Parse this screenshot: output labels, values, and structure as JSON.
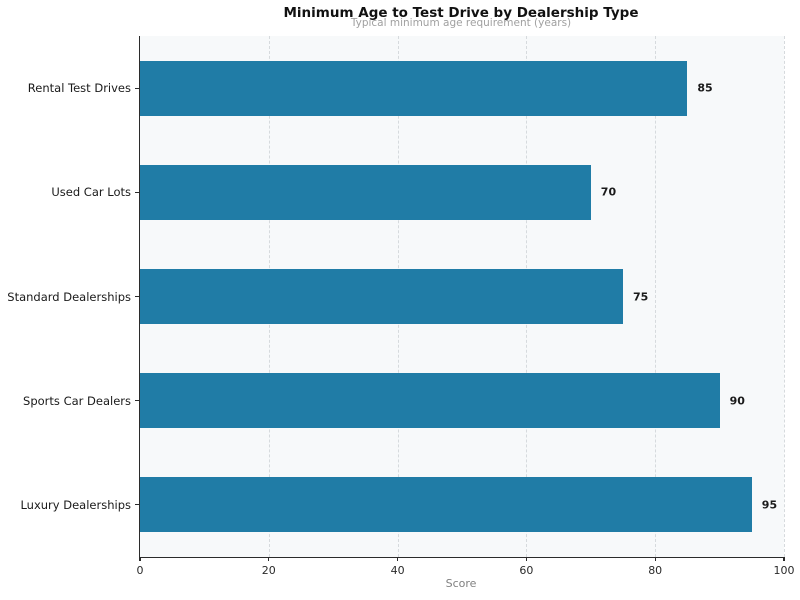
{
  "chart_data": {
    "type": "bar",
    "orientation": "horizontal",
    "title": "Minimum Age to Test Drive by Dealership Type",
    "subtitle": "Typical minimum age requirement (years)",
    "categories": [
      "Rental Test Drives",
      "Used Car Lots",
      "Standard Dealerships",
      "Sports Car Dealers",
      "Luxury Dealerships"
    ],
    "values": [
      85,
      70,
      75,
      90,
      95
    ],
    "xlabel": "Score",
    "xlim": [
      0,
      100
    ],
    "xticks": [
      0,
      20,
      40,
      60,
      80,
      100
    ],
    "legend": "none",
    "grid": "vertical-dashed",
    "colors": {
      "bar": "#207ca6",
      "plot_background": "#f7f9fa",
      "gridline": "#d6dadd",
      "spine": "#2b2b2b",
      "value_label": "#1a1a1a",
      "subtitle": "#a0a0a0",
      "axis_label": "#808080"
    }
  }
}
